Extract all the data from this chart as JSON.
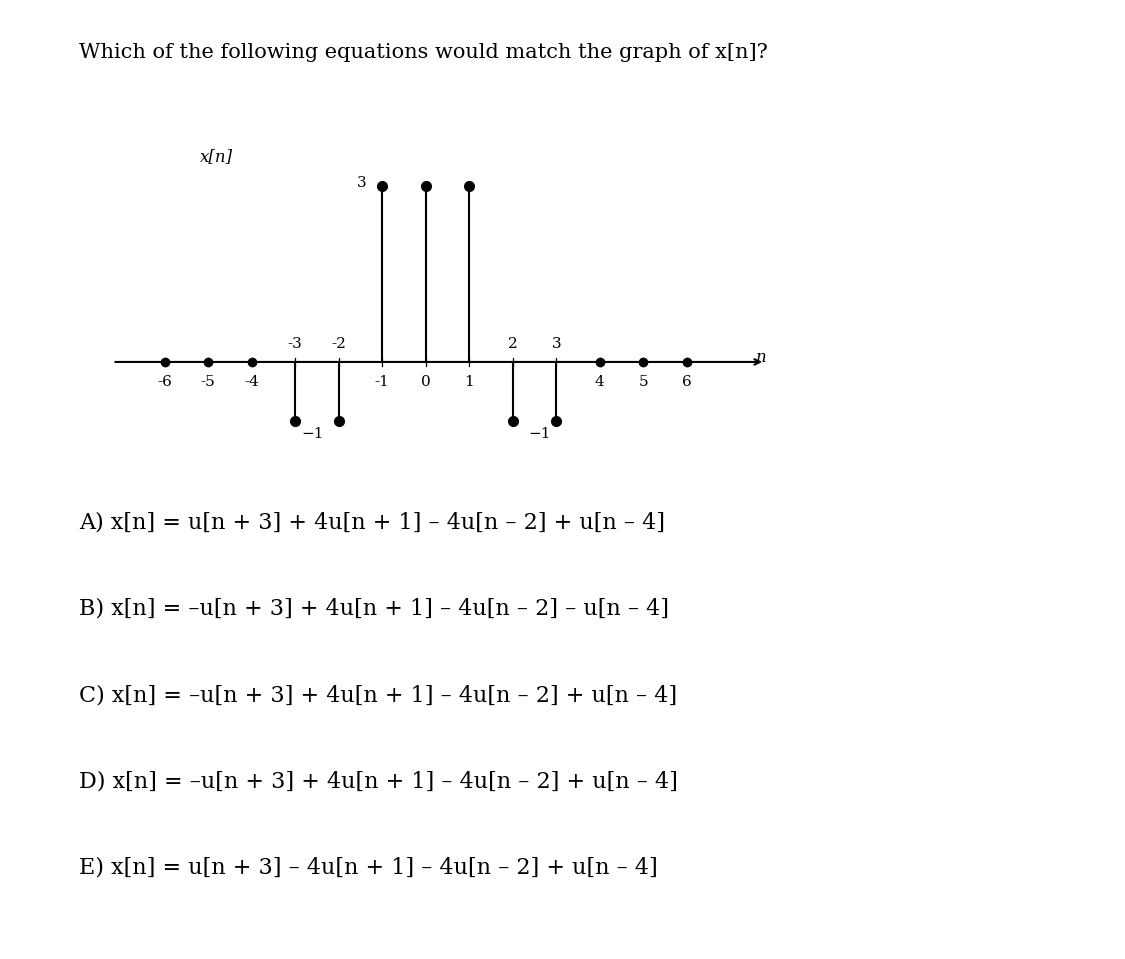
{
  "title": "Which of the following equations would match the graph of x[n]?",
  "graph_ylabel": "x[n]",
  "graph_xlabel": "n",
  "n_values": [
    -6,
    -5,
    -4,
    -3,
    -2,
    -1,
    0,
    1,
    2,
    3,
    4,
    5,
    6
  ],
  "x_values": [
    0,
    0,
    0,
    -1,
    -1,
    3,
    3,
    3,
    -1,
    -1,
    0,
    0,
    0
  ],
  "ylim": [
    -2.0,
    4.2
  ],
  "xlim": [
    -7.2,
    7.8
  ],
  "background_color": "#ffffff",
  "stem_color": "#000000",
  "dot_color": "#000000",
  "options": [
    {
      "label": "A)",
      "eq": "x[n] = u[n + 3] + 4u[n + 1] – 4u[n – 2] + u[n – 4]"
    },
    {
      "label": "B)",
      "eq": "x[n] = –u[n + 3] + 4u[n + 1] – 4u[n – 2] – u[n – 4]"
    },
    {
      "label": "C)",
      "eq": "x[n] = –u[n + 3] + 4u[n + 1] – 4u[n – 2] + u[n – 4]"
    },
    {
      "label": "D)",
      "eq": "x[n] = –u[n + 3] + 4u[n + 1] – 4u[n – 2] + u[n – 4]"
    },
    {
      "label": "E)",
      "eq": "x[n] = u[n + 3] – 4u[n + 1] – 4u[n – 2] + u[n – 4]"
    }
  ],
  "title_fontsize": 15,
  "option_fontsize": 16,
  "graph_tick_fontsize": 11
}
